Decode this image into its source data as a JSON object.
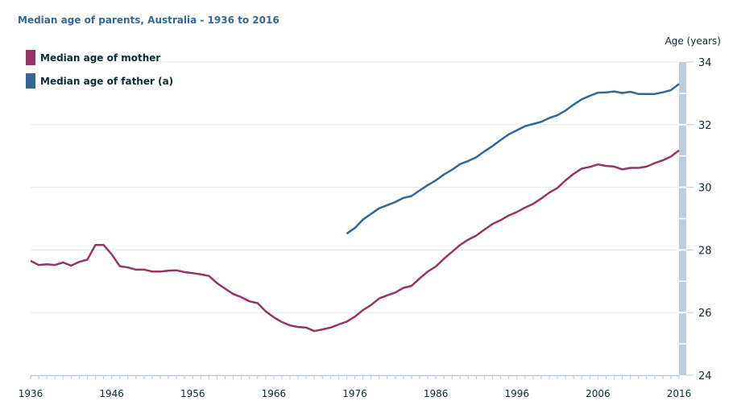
{
  "chart_data": {
    "type": "line",
    "title": "Median age of parents, Australia - 1936 to 2016",
    "xlabel": "",
    "ylabel": "Age (years)",
    "xlim": [
      1936,
      2016
    ],
    "ylim": [
      24,
      34
    ],
    "x_ticks": [
      1936,
      1946,
      1956,
      1966,
      1976,
      1986,
      1996,
      2006,
      2016
    ],
    "y_ticks": [
      24,
      26,
      28,
      30,
      32,
      34
    ],
    "y_axis_side": "right",
    "grid": true,
    "legend_position": "top-left",
    "series": [
      {
        "name": "Median age of mother",
        "color": "#993366",
        "start_year": 1936,
        "values": [
          27.65,
          27.52,
          27.54,
          27.52,
          27.6,
          27.5,
          27.62,
          27.69,
          28.16,
          28.16,
          27.86,
          27.48,
          27.44,
          27.37,
          27.37,
          27.31,
          27.31,
          27.34,
          27.35,
          27.29,
          27.26,
          27.22,
          27.17,
          26.94,
          26.76,
          26.59,
          26.49,
          26.36,
          26.3,
          26.04,
          25.85,
          25.7,
          25.59,
          25.54,
          25.52,
          25.41,
          25.46,
          25.52,
          25.62,
          25.71,
          25.87,
          26.08,
          26.24,
          26.45,
          26.55,
          26.64,
          26.79,
          26.85,
          27.09,
          27.31,
          27.47,
          27.72,
          27.94,
          28.16,
          28.33,
          28.46,
          28.65,
          28.83,
          28.95,
          29.1,
          29.21,
          29.35,
          29.47,
          29.64,
          29.83,
          29.98,
          30.22,
          30.43,
          30.6,
          30.65,
          30.73,
          30.68,
          30.66,
          30.57,
          30.62,
          30.62,
          30.66,
          30.77,
          30.86,
          30.98,
          31.18
        ]
      },
      {
        "name": "Median age of father (a)",
        "color": "#336699",
        "start_year": 1975,
        "values": [
          28.52,
          28.7,
          28.97,
          29.15,
          29.33,
          29.43,
          29.53,
          29.66,
          29.72,
          29.9,
          30.07,
          30.22,
          30.41,
          30.56,
          30.74,
          30.84,
          30.96,
          31.15,
          31.32,
          31.51,
          31.69,
          31.82,
          31.95,
          32.02,
          32.09,
          32.21,
          32.3,
          32.45,
          32.64,
          32.81,
          32.92,
          33.02,
          33.03,
          33.06,
          33.01,
          33.05,
          32.98,
          32.98,
          32.98,
          33.03,
          33.1,
          33.3
        ]
      }
    ]
  }
}
